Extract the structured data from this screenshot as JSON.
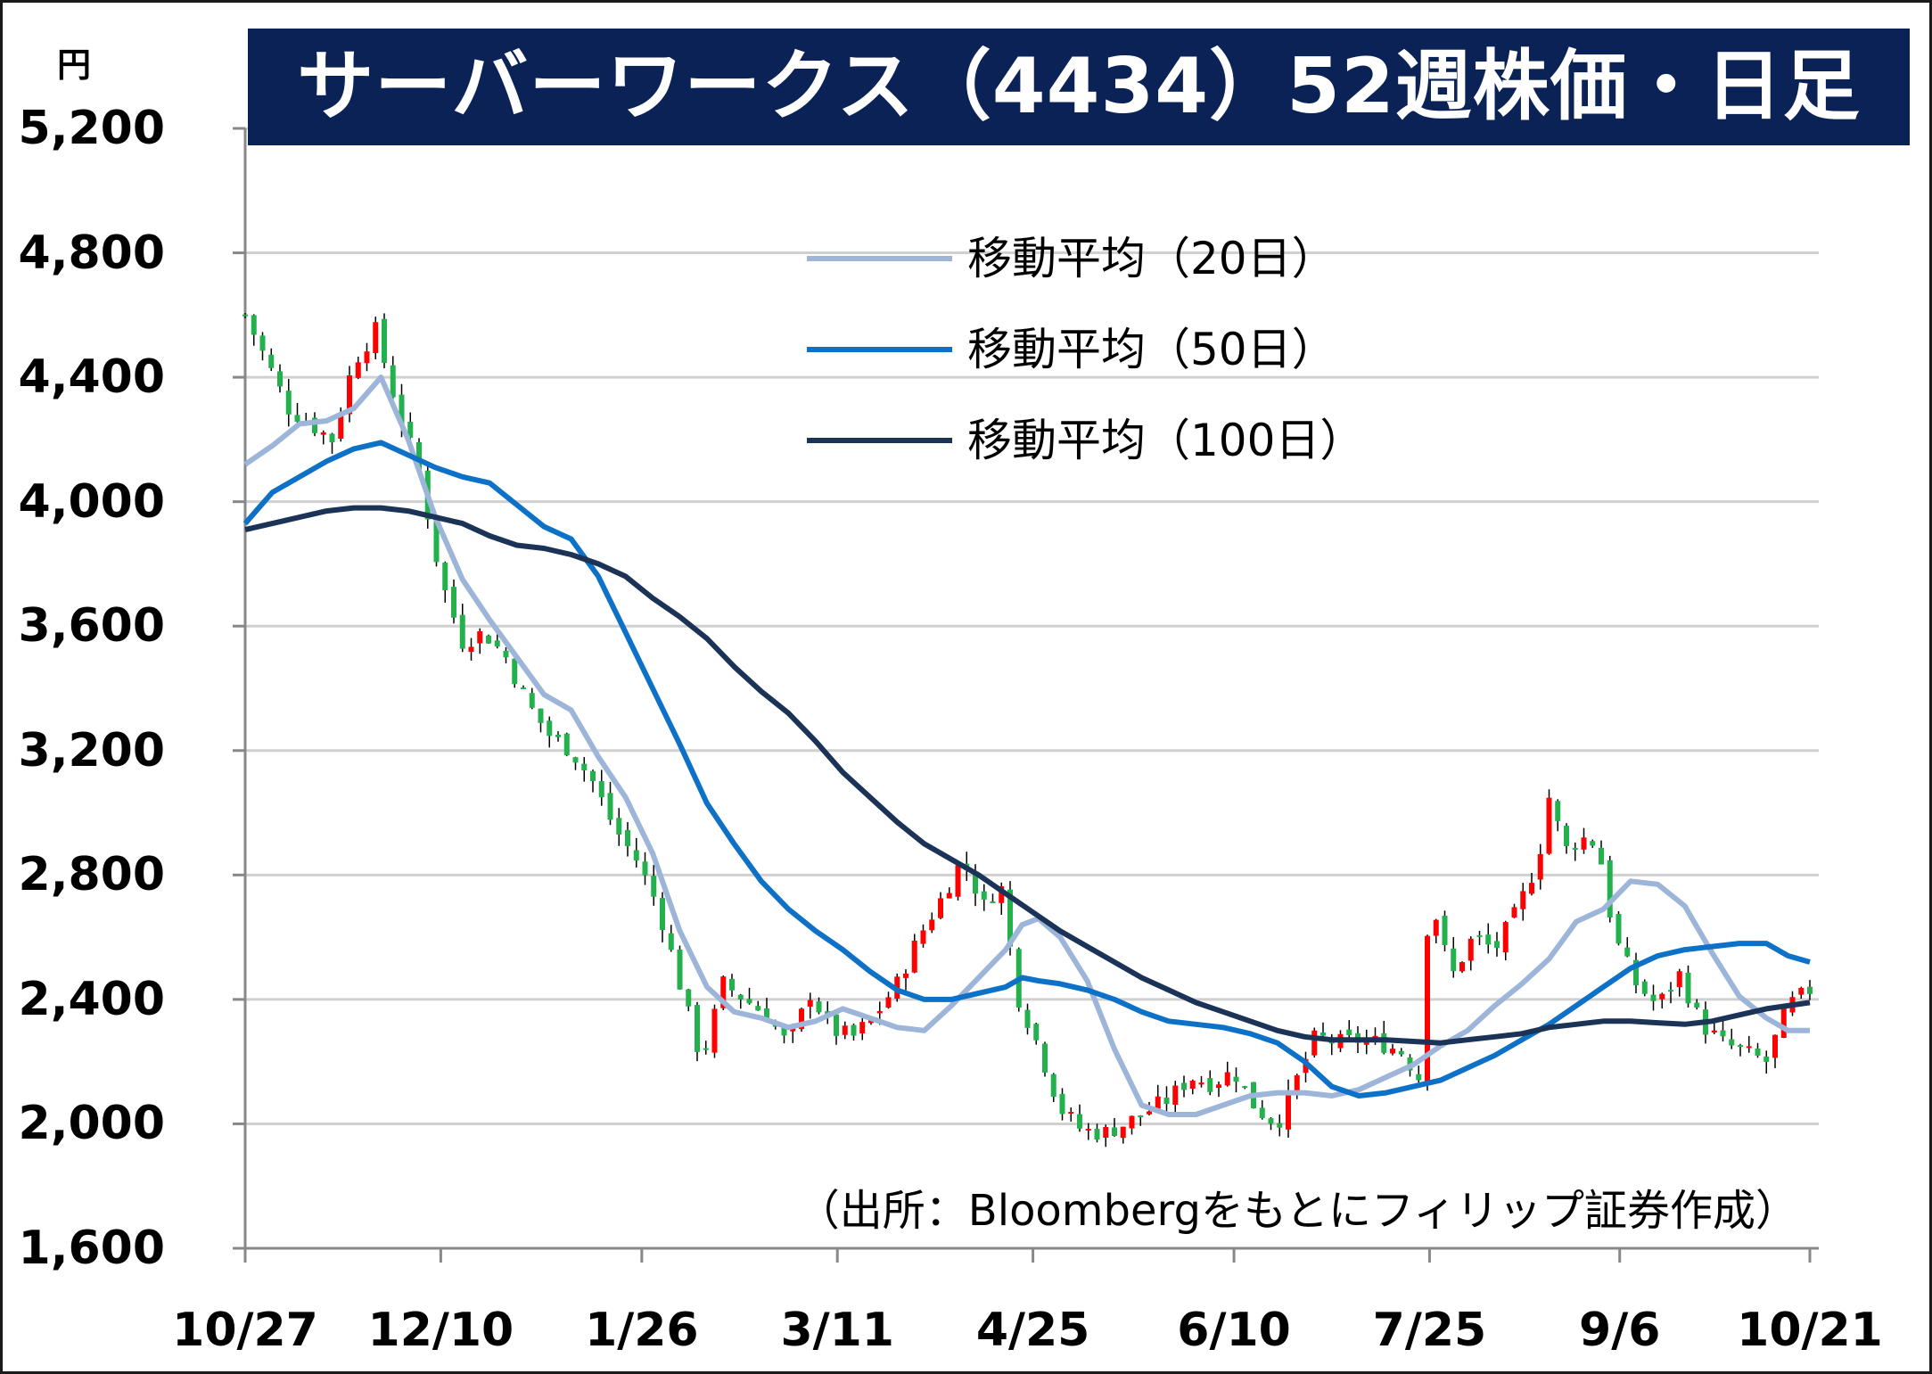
{
  "chart_data": {
    "type": "candlestick",
    "title": "サーバーワークス（4434）52週株価・日足",
    "ylabel": "円",
    "ylim": [
      1600,
      5200
    ],
    "yticks": [
      "5,200",
      "4,800",
      "4,400",
      "4,000",
      "3,600",
      "3,200",
      "2,800",
      "2,400",
      "2,000",
      "1,600"
    ],
    "xticks": [
      "10/27",
      "12/10",
      "1/26",
      "3/11",
      "4/25",
      "6/10",
      "7/25",
      "9/6",
      "10/21"
    ],
    "grid": true,
    "legend_position": "top-right",
    "colors": {
      "up": "#ff0000",
      "down": "#22b14c",
      "wick": "#000000",
      "grid": "#d0d0d0",
      "title_bg": "#0b2257"
    },
    "series": [
      {
        "name": "移動平均（20日）",
        "color": "#9db5d9",
        "points": [
          [
            0,
            4120
          ],
          [
            5,
            4180
          ],
          [
            10,
            4250
          ],
          [
            15,
            4260
          ],
          [
            20,
            4300
          ],
          [
            25,
            4400
          ],
          [
            30,
            4200
          ],
          [
            35,
            3950
          ],
          [
            40,
            3750
          ],
          [
            45,
            3620
          ],
          [
            50,
            3500
          ],
          [
            55,
            3380
          ],
          [
            60,
            3330
          ],
          [
            65,
            3180
          ],
          [
            70,
            3050
          ],
          [
            75,
            2870
          ],
          [
            80,
            2620
          ],
          [
            85,
            2440
          ],
          [
            90,
            2360
          ],
          [
            95,
            2340
          ],
          [
            100,
            2310
          ],
          [
            105,
            2330
          ],
          [
            110,
            2370
          ],
          [
            115,
            2340
          ],
          [
            120,
            2310
          ],
          [
            125,
            2300
          ],
          [
            130,
            2380
          ],
          [
            135,
            2470
          ],
          [
            140,
            2560
          ],
          [
            143,
            2640
          ],
          [
            146,
            2660
          ],
          [
            150,
            2600
          ],
          [
            155,
            2460
          ],
          [
            160,
            2240
          ],
          [
            165,
            2060
          ],
          [
            170,
            2030
          ],
          [
            175,
            2030
          ],
          [
            180,
            2060
          ],
          [
            185,
            2090
          ],
          [
            190,
            2100
          ],
          [
            195,
            2100
          ],
          [
            200,
            2090
          ],
          [
            205,
            2110
          ],
          [
            210,
            2150
          ],
          [
            215,
            2190
          ],
          [
            220,
            2250
          ],
          [
            225,
            2300
          ],
          [
            230,
            2380
          ],
          [
            235,
            2450
          ],
          [
            240,
            2530
          ],
          [
            245,
            2650
          ],
          [
            250,
            2690
          ],
          [
            255,
            2780
          ],
          [
            260,
            2770
          ],
          [
            265,
            2700
          ],
          [
            270,
            2550
          ],
          [
            275,
            2410
          ],
          [
            280,
            2340
          ],
          [
            284,
            2300
          ],
          [
            288,
            2300
          ]
        ]
      },
      {
        "name": "移動平均（50日）",
        "color": "#0d71c8",
        "points": [
          [
            0,
            3930
          ],
          [
            5,
            4030
          ],
          [
            10,
            4080
          ],
          [
            15,
            4130
          ],
          [
            20,
            4170
          ],
          [
            25,
            4190
          ],
          [
            30,
            4150
          ],
          [
            35,
            4110
          ],
          [
            40,
            4080
          ],
          [
            45,
            4060
          ],
          [
            50,
            3990
          ],
          [
            55,
            3920
          ],
          [
            60,
            3880
          ],
          [
            65,
            3760
          ],
          [
            70,
            3580
          ],
          [
            75,
            3400
          ],
          [
            80,
            3220
          ],
          [
            85,
            3030
          ],
          [
            90,
            2900
          ],
          [
            95,
            2780
          ],
          [
            100,
            2690
          ],
          [
            105,
            2620
          ],
          [
            110,
            2560
          ],
          [
            115,
            2490
          ],
          [
            120,
            2430
          ],
          [
            125,
            2400
          ],
          [
            130,
            2400
          ],
          [
            135,
            2420
          ],
          [
            140,
            2440
          ],
          [
            143,
            2470
          ],
          [
            146,
            2460
          ],
          [
            150,
            2450
          ],
          [
            155,
            2430
          ],
          [
            160,
            2400
          ],
          [
            165,
            2360
          ],
          [
            170,
            2330
          ],
          [
            175,
            2320
          ],
          [
            180,
            2310
          ],
          [
            185,
            2290
          ],
          [
            190,
            2260
          ],
          [
            195,
            2200
          ],
          [
            200,
            2120
          ],
          [
            205,
            2090
          ],
          [
            210,
            2100
          ],
          [
            215,
            2120
          ],
          [
            220,
            2140
          ],
          [
            225,
            2180
          ],
          [
            230,
            2220
          ],
          [
            235,
            2270
          ],
          [
            240,
            2320
          ],
          [
            245,
            2380
          ],
          [
            250,
            2440
          ],
          [
            255,
            2500
          ],
          [
            260,
            2540
          ],
          [
            265,
            2560
          ],
          [
            270,
            2570
          ],
          [
            275,
            2580
          ],
          [
            280,
            2580
          ],
          [
            284,
            2540
          ],
          [
            288,
            2520
          ]
        ]
      },
      {
        "name": "移動平均（100日）",
        "color": "#1c3358",
        "points": [
          [
            0,
            3910
          ],
          [
            5,
            3930
          ],
          [
            10,
            3950
          ],
          [
            15,
            3970
          ],
          [
            20,
            3980
          ],
          [
            25,
            3980
          ],
          [
            30,
            3970
          ],
          [
            35,
            3950
          ],
          [
            40,
            3930
          ],
          [
            45,
            3890
          ],
          [
            50,
            3860
          ],
          [
            55,
            3850
          ],
          [
            60,
            3830
          ],
          [
            65,
            3800
          ],
          [
            70,
            3760
          ],
          [
            75,
            3690
          ],
          [
            80,
            3630
          ],
          [
            85,
            3560
          ],
          [
            90,
            3470
          ],
          [
            95,
            3390
          ],
          [
            100,
            3320
          ],
          [
            105,
            3230
          ],
          [
            110,
            3130
          ],
          [
            115,
            3050
          ],
          [
            120,
            2970
          ],
          [
            125,
            2900
          ],
          [
            130,
            2850
          ],
          [
            135,
            2800
          ],
          [
            140,
            2740
          ],
          [
            145,
            2680
          ],
          [
            150,
            2620
          ],
          [
            155,
            2570
          ],
          [
            160,
            2520
          ],
          [
            165,
            2470
          ],
          [
            170,
            2430
          ],
          [
            175,
            2390
          ],
          [
            180,
            2360
          ],
          [
            185,
            2330
          ],
          [
            190,
            2300
          ],
          [
            195,
            2280
          ],
          [
            200,
            2270
          ],
          [
            205,
            2270
          ],
          [
            210,
            2270
          ],
          [
            215,
            2265
          ],
          [
            220,
            2260
          ],
          [
            225,
            2270
          ],
          [
            230,
            2280
          ],
          [
            235,
            2290
          ],
          [
            240,
            2310
          ],
          [
            245,
            2320
          ],
          [
            250,
            2330
          ],
          [
            255,
            2330
          ],
          [
            260,
            2325
          ],
          [
            265,
            2320
          ],
          [
            270,
            2330
          ],
          [
            275,
            2350
          ],
          [
            280,
            2370
          ],
          [
            284,
            2380
          ],
          [
            288,
            2390
          ]
        ]
      }
    ],
    "annotations": [
      "（出所：Bloombergをもとにフィリップ証券作成）"
    ]
  }
}
